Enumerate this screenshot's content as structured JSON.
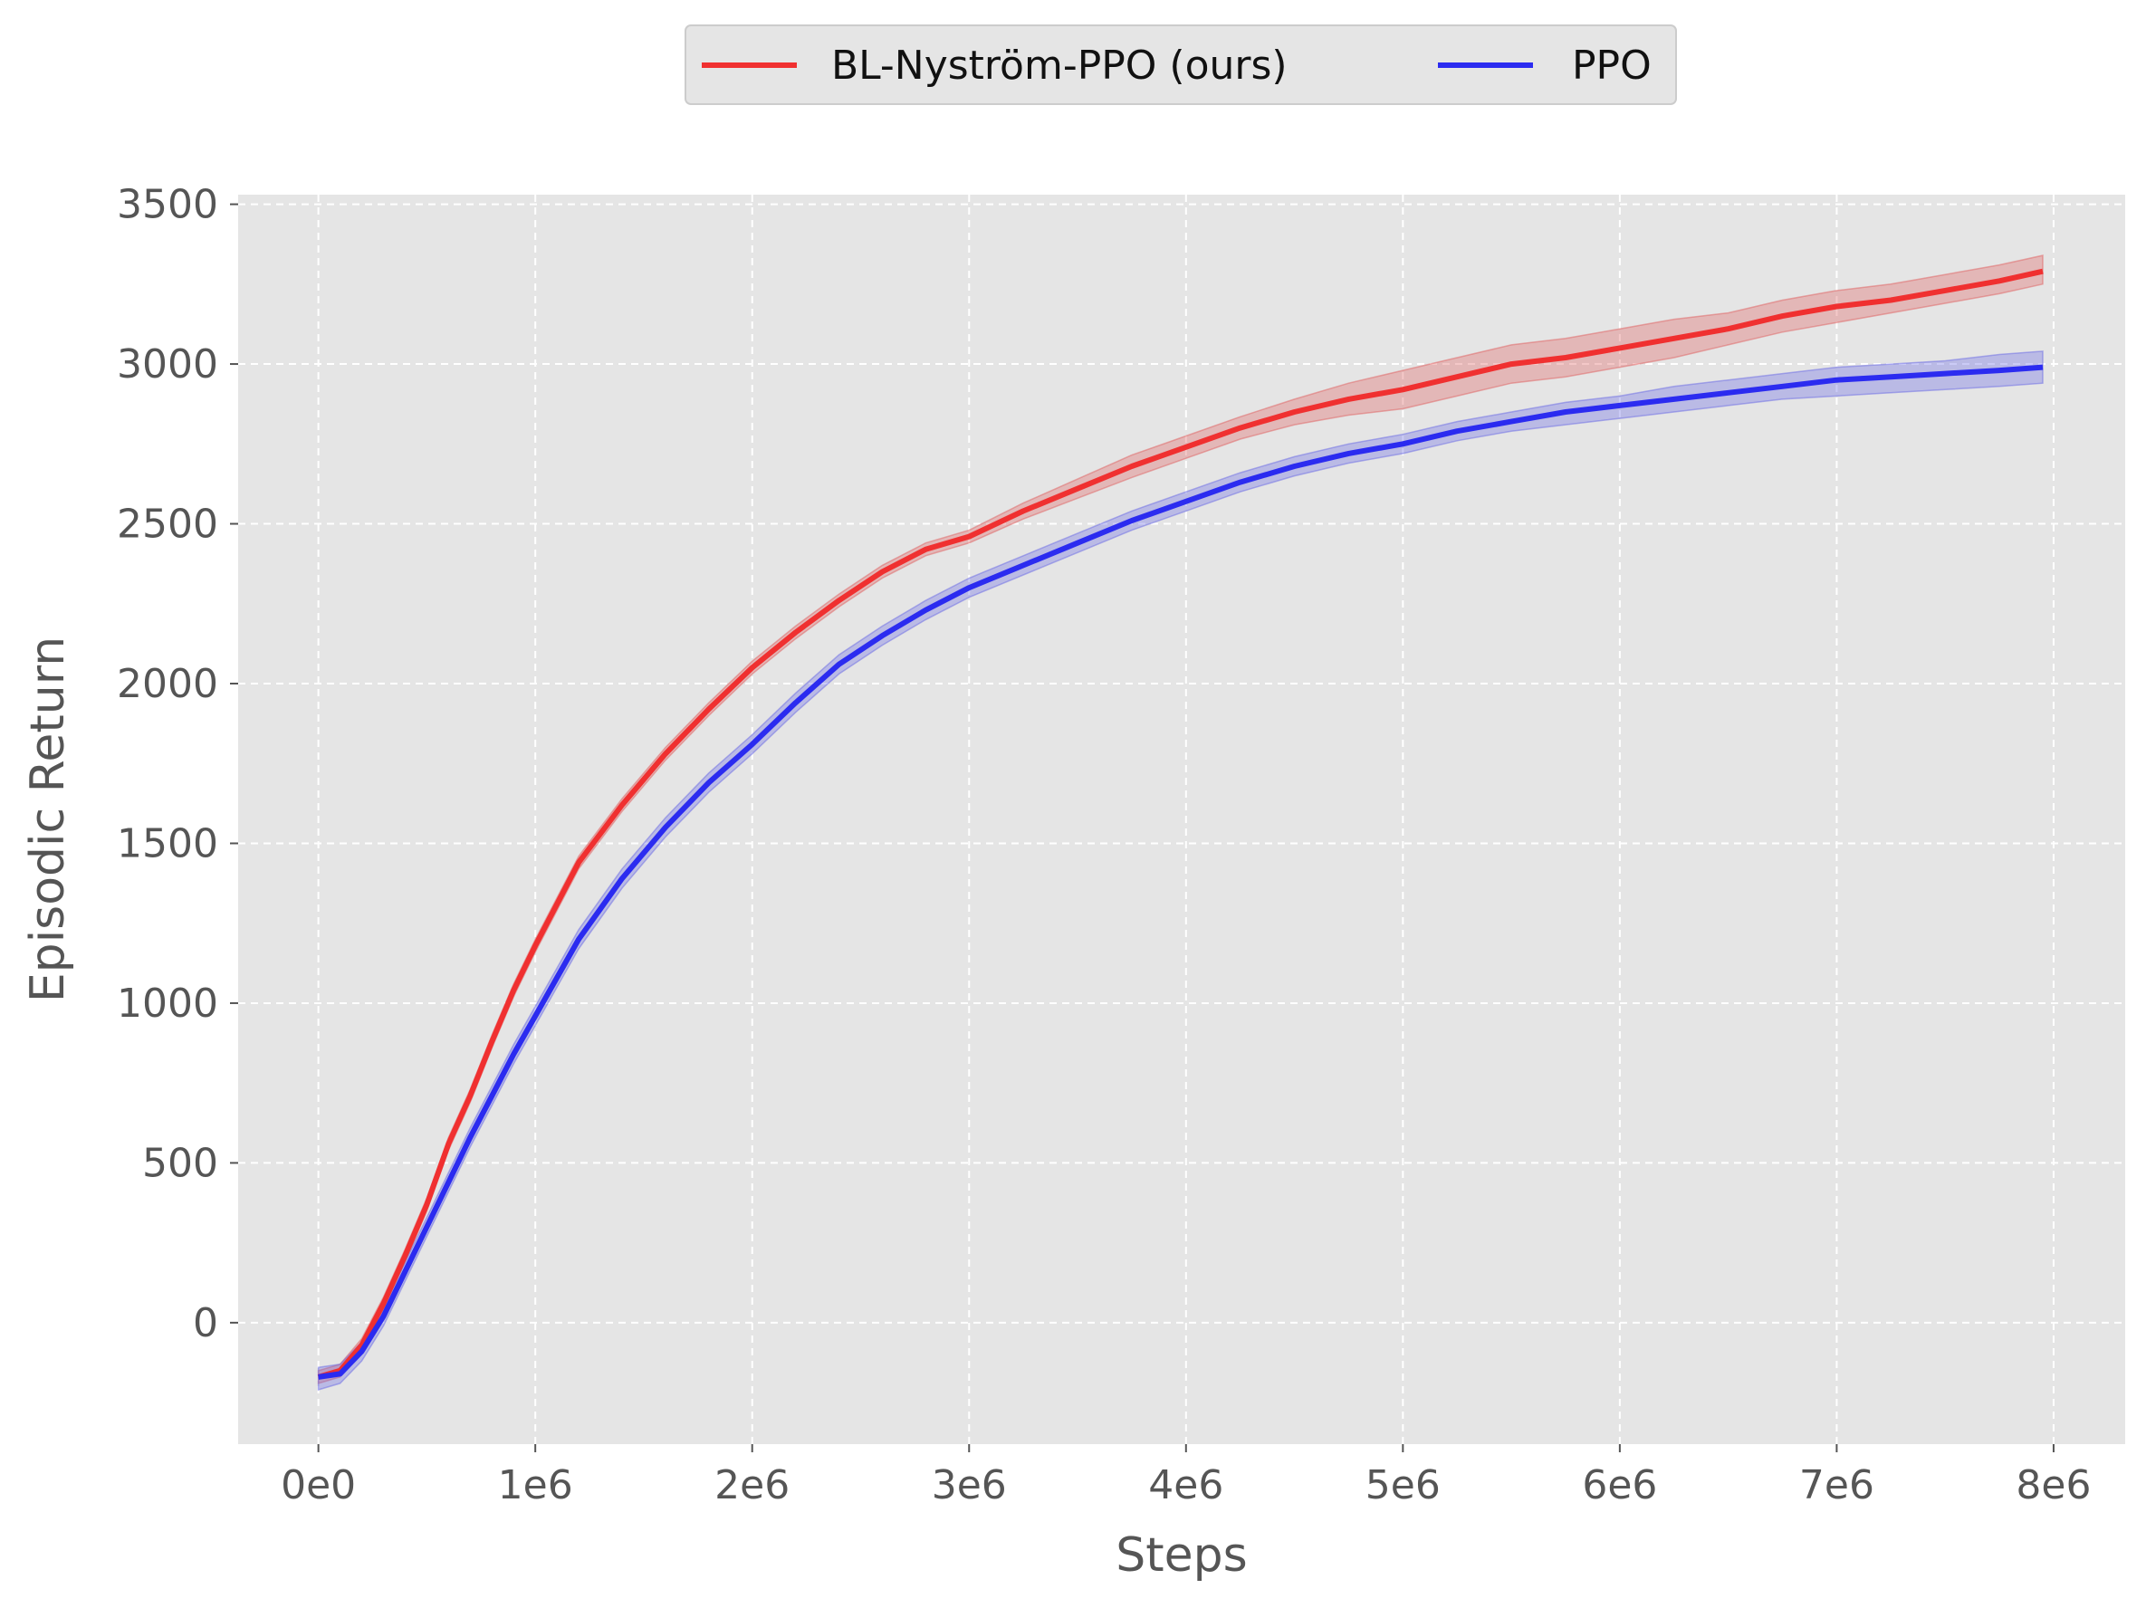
{
  "chart_data": {
    "type": "line",
    "title": "",
    "xlabel": "Steps",
    "ylabel": "Episodic Return",
    "xlim": [
      -370000,
      8330000
    ],
    "ylim": [
      -380,
      3530
    ],
    "xticks": [
      0,
      1000000,
      2000000,
      3000000,
      4000000,
      5000000,
      6000000,
      7000000,
      8000000
    ],
    "xtick_labels": [
      "0e0",
      "1e6",
      "2e6",
      "3e6",
      "4e6",
      "5e6",
      "6e6",
      "7e6",
      "8e6"
    ],
    "yticks": [
      0,
      500,
      1000,
      1500,
      2000,
      2500,
      3000,
      3500
    ],
    "ytick_labels": [
      "0",
      "500",
      "1000",
      "1500",
      "2000",
      "2500",
      "3000",
      "3500"
    ],
    "grid": true,
    "legend": {
      "placement": "top-center",
      "columns": 2
    },
    "x": [
      0,
      100000,
      200000,
      300000,
      400000,
      500000,
      600000,
      700000,
      800000,
      900000,
      1000000,
      1200000,
      1400000,
      1600000,
      1800000,
      2000000,
      2200000,
      2400000,
      2600000,
      2800000,
      3000000,
      3250000,
      3500000,
      3750000,
      4000000,
      4250000,
      4500000,
      4750000,
      5000000,
      5250000,
      5500000,
      5750000,
      6000000,
      6250000,
      6500000,
      6750000,
      7000000,
      7250000,
      7500000,
      7750000,
      7950000
    ],
    "series": [
      {
        "name": "BL-Nyström-PPO (ours)",
        "color": "#f03030",
        "band_color": "#e06060",
        "values": [
          -170,
          -150,
          -70,
          60,
          210,
          370,
          560,
          710,
          880,
          1040,
          1180,
          1440,
          1620,
          1780,
          1920,
          2050,
          2160,
          2260,
          2350,
          2420,
          2460,
          2540,
          2610,
          2680,
          2740,
          2800,
          2850,
          2890,
          2920,
          2960,
          3000,
          3020,
          3050,
          3080,
          3110,
          3150,
          3180,
          3200,
          3230,
          3260,
          3290
        ],
        "band_low": [
          -190,
          -170,
          -90,
          40,
          190,
          350,
          540,
          690,
          860,
          1020,
          1160,
          1420,
          1600,
          1760,
          1900,
          2030,
          2140,
          2240,
          2330,
          2400,
          2440,
          2515,
          2580,
          2645,
          2705,
          2765,
          2810,
          2840,
          2860,
          2900,
          2940,
          2960,
          2990,
          3020,
          3060,
          3100,
          3130,
          3160,
          3190,
          3220,
          3250
        ],
        "band_high": [
          -150,
          -130,
          -50,
          80,
          230,
          390,
          580,
          730,
          900,
          1060,
          1200,
          1460,
          1640,
          1800,
          1940,
          2070,
          2180,
          2280,
          2370,
          2440,
          2480,
          2565,
          2640,
          2715,
          2775,
          2835,
          2890,
          2940,
          2980,
          3020,
          3060,
          3080,
          3110,
          3140,
          3160,
          3200,
          3230,
          3250,
          3280,
          3310,
          3340
        ]
      },
      {
        "name": "PPO",
        "color": "#2b2bf0",
        "band_color": "#6a6ae6",
        "values": [
          -170,
          -160,
          -90,
          20,
          160,
          300,
          440,
          580,
          710,
          840,
          960,
          1200,
          1390,
          1550,
          1690,
          1810,
          1940,
          2060,
          2150,
          2230,
          2300,
          2370,
          2440,
          2510,
          2570,
          2630,
          2680,
          2720,
          2750,
          2790,
          2820,
          2850,
          2870,
          2890,
          2910,
          2930,
          2950,
          2960,
          2970,
          2980,
          2990
        ],
        "band_low": [
          -210,
          -190,
          -120,
          -10,
          130,
          270,
          410,
          550,
          680,
          810,
          930,
          1170,
          1360,
          1520,
          1660,
          1780,
          1910,
          2030,
          2120,
          2200,
          2270,
          2340,
          2410,
          2480,
          2540,
          2600,
          2650,
          2690,
          2720,
          2760,
          2790,
          2810,
          2830,
          2850,
          2870,
          2890,
          2900,
          2910,
          2920,
          2930,
          2940
        ],
        "band_high": [
          -140,
          -130,
          -60,
          50,
          190,
          330,
          470,
          610,
          740,
          870,
          990,
          1230,
          1420,
          1580,
          1720,
          1840,
          1970,
          2090,
          2180,
          2260,
          2330,
          2400,
          2470,
          2540,
          2600,
          2660,
          2710,
          2750,
          2780,
          2820,
          2850,
          2880,
          2900,
          2930,
          2950,
          2970,
          2990,
          3000,
          3010,
          3030,
          3040
        ]
      }
    ]
  }
}
